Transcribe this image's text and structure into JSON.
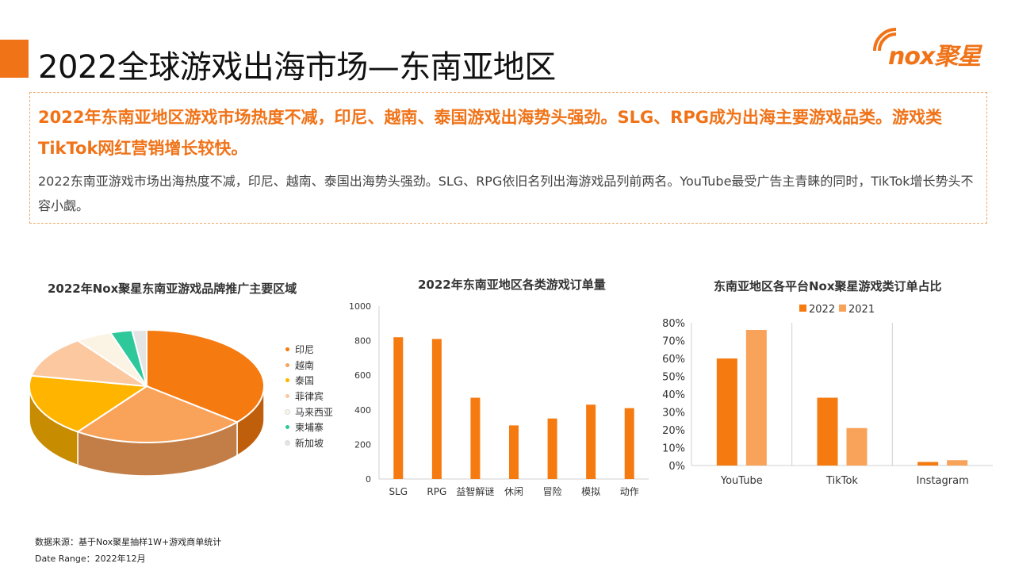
{
  "page": {
    "title": "2022全球游戏出海市场—东南亚地区",
    "logo_text": "nox聚星",
    "headline": "2022年东南亚地区游戏市场热度不减，印尼、越南、泰国游戏出海势头强劲。SLG、RPG成为出海主要游戏品类。游戏类TikTok网红营销增长较快。",
    "detail": "2022东南亚游戏市场出海热度不减，印尼、越南、泰国出海势头强劲。SLG、RPG依旧名列出海游戏品列前两名。YouTube最受广告主青睐的同时，TikTok增长势头不容小觑。",
    "source": "数据来源：基于Nox聚星抽样1W+游戏商单统计",
    "date_range": "Date Range：2022年12月"
  },
  "colors": {
    "accent": "#f07318",
    "light_orange": "#f7a35c"
  },
  "chart_data": [
    {
      "type": "pie",
      "title": "2022年Nox聚星东南亚游戏品牌推广主要区域",
      "labels": [
        "印尼",
        "越南",
        "泰国",
        "菲律宾",
        "马来西亚",
        "柬埔寨",
        "新加坡"
      ],
      "values": [
        36,
        24,
        18,
        12,
        5,
        3,
        2
      ],
      "colors": [
        "#f57a10",
        "#f9a25a",
        "#ffb400",
        "#fbc8a0",
        "#fbf3e4",
        "#2fc89a",
        "#e4e4e4"
      ],
      "legend": "right"
    },
    {
      "type": "bar",
      "title": "2022年东南亚地区各类游戏订单量",
      "categories": [
        "SLG",
        "RPG",
        "益智解谜",
        "休闲",
        "冒险",
        "模拟",
        "动作"
      ],
      "values": [
        820,
        810,
        470,
        310,
        350,
        430,
        410
      ],
      "ylim": [
        0,
        1000
      ],
      "yticks": [
        0,
        200,
        400,
        600,
        800,
        1000
      ],
      "color": "#f57a10"
    },
    {
      "type": "bar",
      "title": "东南亚地区各平台Nox聚星游戏类订单占比",
      "categories": [
        "YouTube",
        "TikTok",
        "Instagram"
      ],
      "series": [
        {
          "name": "2022",
          "values": [
            60,
            38,
            2
          ],
          "color": "#f57a10"
        },
        {
          "name": "2021",
          "values": [
            76,
            21,
            3
          ],
          "color": "#f9a25a"
        }
      ],
      "ylim": [
        0,
        80
      ],
      "yticks": [
        "0%",
        "10%",
        "20%",
        "30%",
        "40%",
        "50%",
        "60%",
        "70%",
        "80%"
      ],
      "legend": "top"
    }
  ]
}
